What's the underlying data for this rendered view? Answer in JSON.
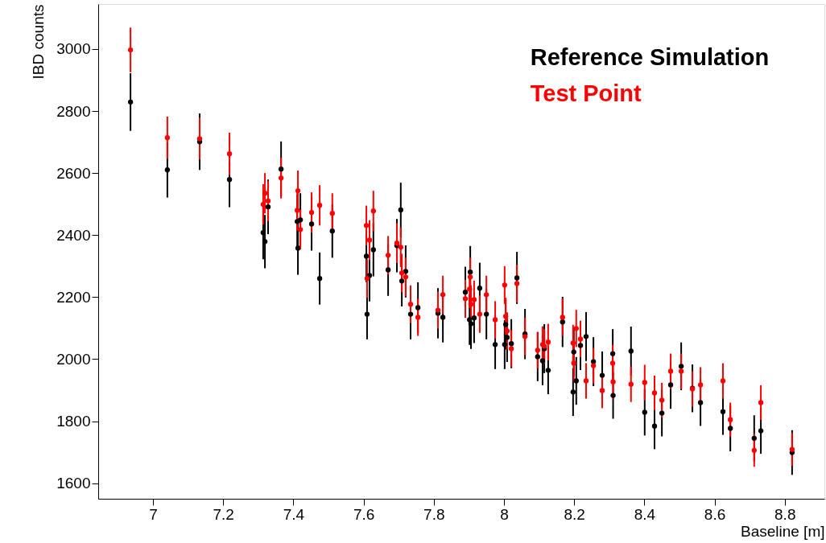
{
  "chart_data": {
    "type": "scatter",
    "xlabel": "Baseline [m]",
    "ylabel": "IBD counts",
    "xlim": [
      6.844,
      8.913
    ],
    "ylim": [
      1550,
      3145
    ],
    "xticks": [
      7,
      7.2,
      7.4,
      7.6,
      7.8,
      8,
      8.2,
      8.4,
      8.6,
      8.8
    ],
    "yticks": [
      1600,
      1800,
      2000,
      2200,
      2400,
      2600,
      2800,
      3000
    ],
    "grid": false,
    "legend": "top right",
    "marker": "circle",
    "x": [
      6.936,
      7.041,
      7.133,
      7.218,
      7.314,
      7.319,
      7.328,
      7.365,
      7.411,
      7.413,
      7.42,
      7.452,
      7.475,
      7.511,
      7.608,
      7.61,
      7.617,
      7.628,
      7.67,
      7.695,
      7.706,
      7.709,
      7.72,
      7.734,
      7.755,
      7.812,
      7.826,
      7.89,
      7.902,
      7.904,
      7.906,
      7.915,
      7.931,
      7.95,
      7.975,
      8.002,
      8.005,
      8.009,
      8.021,
      8.037,
      8.06,
      8.096,
      8.11,
      8.115,
      8.126,
      8.167,
      8.197,
      8.199,
      8.206,
      8.218,
      8.234,
      8.255,
      8.28,
      8.31,
      8.311,
      8.362,
      8.401,
      8.429,
      8.45,
      8.475,
      8.505,
      8.537,
      8.56,
      8.624,
      8.645,
      8.713,
      8.732,
      8.821
    ],
    "series": [
      {
        "name": "Reference Simulation",
        "color": "#000000",
        "values": [
          2829,
          2610,
          2701,
          2579,
          2408,
          2379,
          2491,
          2613,
          2444,
          2358,
          2449,
          2436,
          2260,
          2413,
          2332,
          2145,
          2270,
          2353,
          2288,
          2366,
          2481,
          2252,
          2283,
          2145,
          2166,
          2148,
          2135,
          2216,
          2127,
          2281,
          2114,
          2133,
          2229,
          2145,
          2047,
          2047,
          2112,
          2070,
          2050,
          2262,
          2081,
          2008,
          1995,
          2034,
          1964,
          2120,
          1894,
          2023,
          1930,
          2044,
          2073,
          1992,
          1948,
          2018,
          1883,
          2026,
          1829,
          1784,
          1826,
          1917,
          1977,
          1906,
          1860,
          1831,
          1777,
          1745,
          1769,
          1699
        ],
        "errors": [
          93,
          89,
          91,
          89,
          86,
          86,
          88,
          89,
          86,
          86,
          86,
          86,
          84,
          86,
          84,
          81,
          84,
          86,
          84,
          86,
          88,
          82,
          84,
          81,
          82,
          81,
          81,
          82,
          81,
          84,
          81,
          81,
          82,
          81,
          79,
          79,
          81,
          79,
          79,
          84,
          81,
          79,
          79,
          79,
          77,
          81,
          77,
          79,
          77,
          79,
          79,
          79,
          77,
          79,
          75,
          79,
          75,
          74,
          75,
          77,
          77,
          77,
          75,
          75,
          74,
          74,
          74,
          72
        ]
      },
      {
        "name": "Test Point",
        "color": "#ff0000",
        "values": [
          2997,
          2714,
          2711,
          2662,
          2499,
          2535,
          2510,
          2584,
          2480,
          2543,
          2418,
          2473,
          2496,
          2470,
          2431,
          2260,
          2384,
          2478,
          2335,
          2374,
          2361,
          2278,
          2265,
          2177,
          2135,
          2158,
          2208,
          2195,
          2226,
          2265,
          2177,
          2192,
          2145,
          2208,
          2127,
          2239,
          2138,
          2091,
          2034,
          2244,
          2073,
          2029,
          2047,
          2042,
          2055,
          2135,
          2052,
          1987,
          2099,
          2065,
          1930,
          1979,
          1899,
          1987,
          1927,
          1919,
          1925,
          1891,
          1868,
          1961,
          1961,
          1904,
          1917,
          1930,
          1805,
          1706,
          1860,
          1709
        ],
        "errors": [
          72,
          68,
          68,
          68,
          65,
          65,
          65,
          66,
          65,
          65,
          64,
          65,
          65,
          65,
          64,
          62,
          64,
          65,
          62,
          64,
          64,
          62,
          62,
          61,
          60,
          60,
          61,
          61,
          61,
          62,
          61,
          61,
          60,
          61,
          60,
          61,
          60,
          60,
          59,
          61,
          60,
          59,
          59,
          55,
          59,
          60,
          59,
          59,
          60,
          59,
          57,
          57,
          57,
          59,
          57,
          57,
          57,
          56,
          56,
          57,
          57,
          57,
          57,
          57,
          55,
          53,
          56,
          53
        ]
      }
    ]
  }
}
